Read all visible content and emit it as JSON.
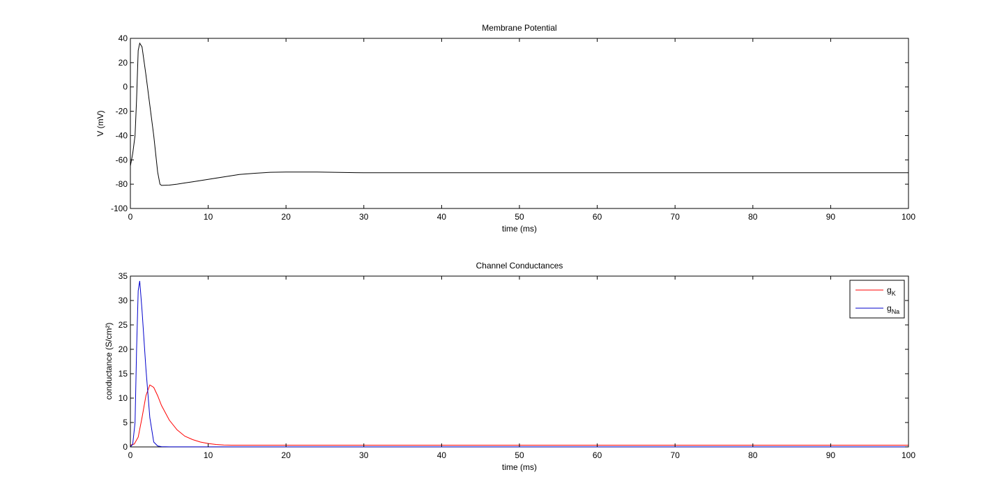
{
  "chart_data": [
    {
      "type": "line",
      "title": "Membrane Potential",
      "xlabel": "time (ms)",
      "ylabel": "V (mV)",
      "xlim": [
        0,
        100
      ],
      "ylim": [
        -100,
        40
      ],
      "xticks": [
        0,
        10,
        20,
        30,
        40,
        50,
        60,
        70,
        80,
        90,
        100
      ],
      "yticks": [
        -100,
        -80,
        -60,
        -40,
        -20,
        0,
        20,
        40
      ],
      "grid": false,
      "series": [
        {
          "color": "#000000",
          "x": [
            0,
            0.3,
            0.6,
            0.8,
            1.0,
            1.2,
            1.5,
            2.0,
            2.5,
            3.0,
            3.5,
            3.8,
            4.0,
            5,
            6,
            7,
            8,
            10,
            12,
            14,
            16,
            18,
            20,
            22,
            24,
            30,
            40,
            50,
            60,
            70,
            80,
            90,
            100
          ],
          "values": [
            -65,
            -55,
            -40,
            -10,
            30,
            36,
            33,
            10,
            -15,
            -40,
            -70,
            -80,
            -81,
            -80.8,
            -80,
            -79,
            -78,
            -76,
            -74,
            -72,
            -71,
            -70.2,
            -70,
            -70,
            -70,
            -70.6,
            -70.6,
            -70.6,
            -70.6,
            -70.6,
            -70.6,
            -70.6,
            -70.6
          ]
        }
      ]
    },
    {
      "type": "line",
      "title": "Channel Conductances",
      "xlabel": "time (ms)",
      "ylabel": "conductance (S/cm²)",
      "xlim": [
        0,
        100
      ],
      "ylim": [
        0,
        35
      ],
      "xticks": [
        0,
        10,
        20,
        30,
        40,
        50,
        60,
        70,
        80,
        90,
        100
      ],
      "yticks": [
        0,
        5,
        10,
        15,
        20,
        25,
        30,
        35
      ],
      "grid": false,
      "legend_position": "top-right",
      "series": [
        {
          "name": "gK",
          "label_main": "g",
          "label_sub": "K",
          "color": "#ff0000",
          "x": [
            0,
            0.5,
            1.0,
            1.5,
            2.0,
            2.5,
            3.0,
            3.5,
            4.0,
            5,
            6,
            7,
            8,
            9,
            10,
            11,
            12,
            13,
            15,
            20,
            30,
            50,
            100
          ],
          "values": [
            0.35,
            0.6,
            2,
            6,
            10.5,
            12.7,
            12.2,
            10.5,
            8.5,
            5.5,
            3.5,
            2.2,
            1.5,
            1.0,
            0.7,
            0.5,
            0.4,
            0.35,
            0.35,
            0.35,
            0.35,
            0.35,
            0.35
          ]
        },
        {
          "name": "gNa",
          "label_main": "g",
          "label_sub": "Na",
          "color": "#0000cc",
          "x": [
            0,
            0.3,
            0.6,
            0.8,
            1.0,
            1.2,
            1.5,
            2.0,
            2.5,
            3.0,
            3.5,
            4.0,
            5,
            10,
            100
          ],
          "values": [
            0.01,
            0.5,
            5,
            20,
            32,
            34,
            28,
            16,
            6,
            1,
            0.2,
            0.05,
            0.01,
            0.01,
            0.01
          ]
        }
      ]
    }
  ]
}
